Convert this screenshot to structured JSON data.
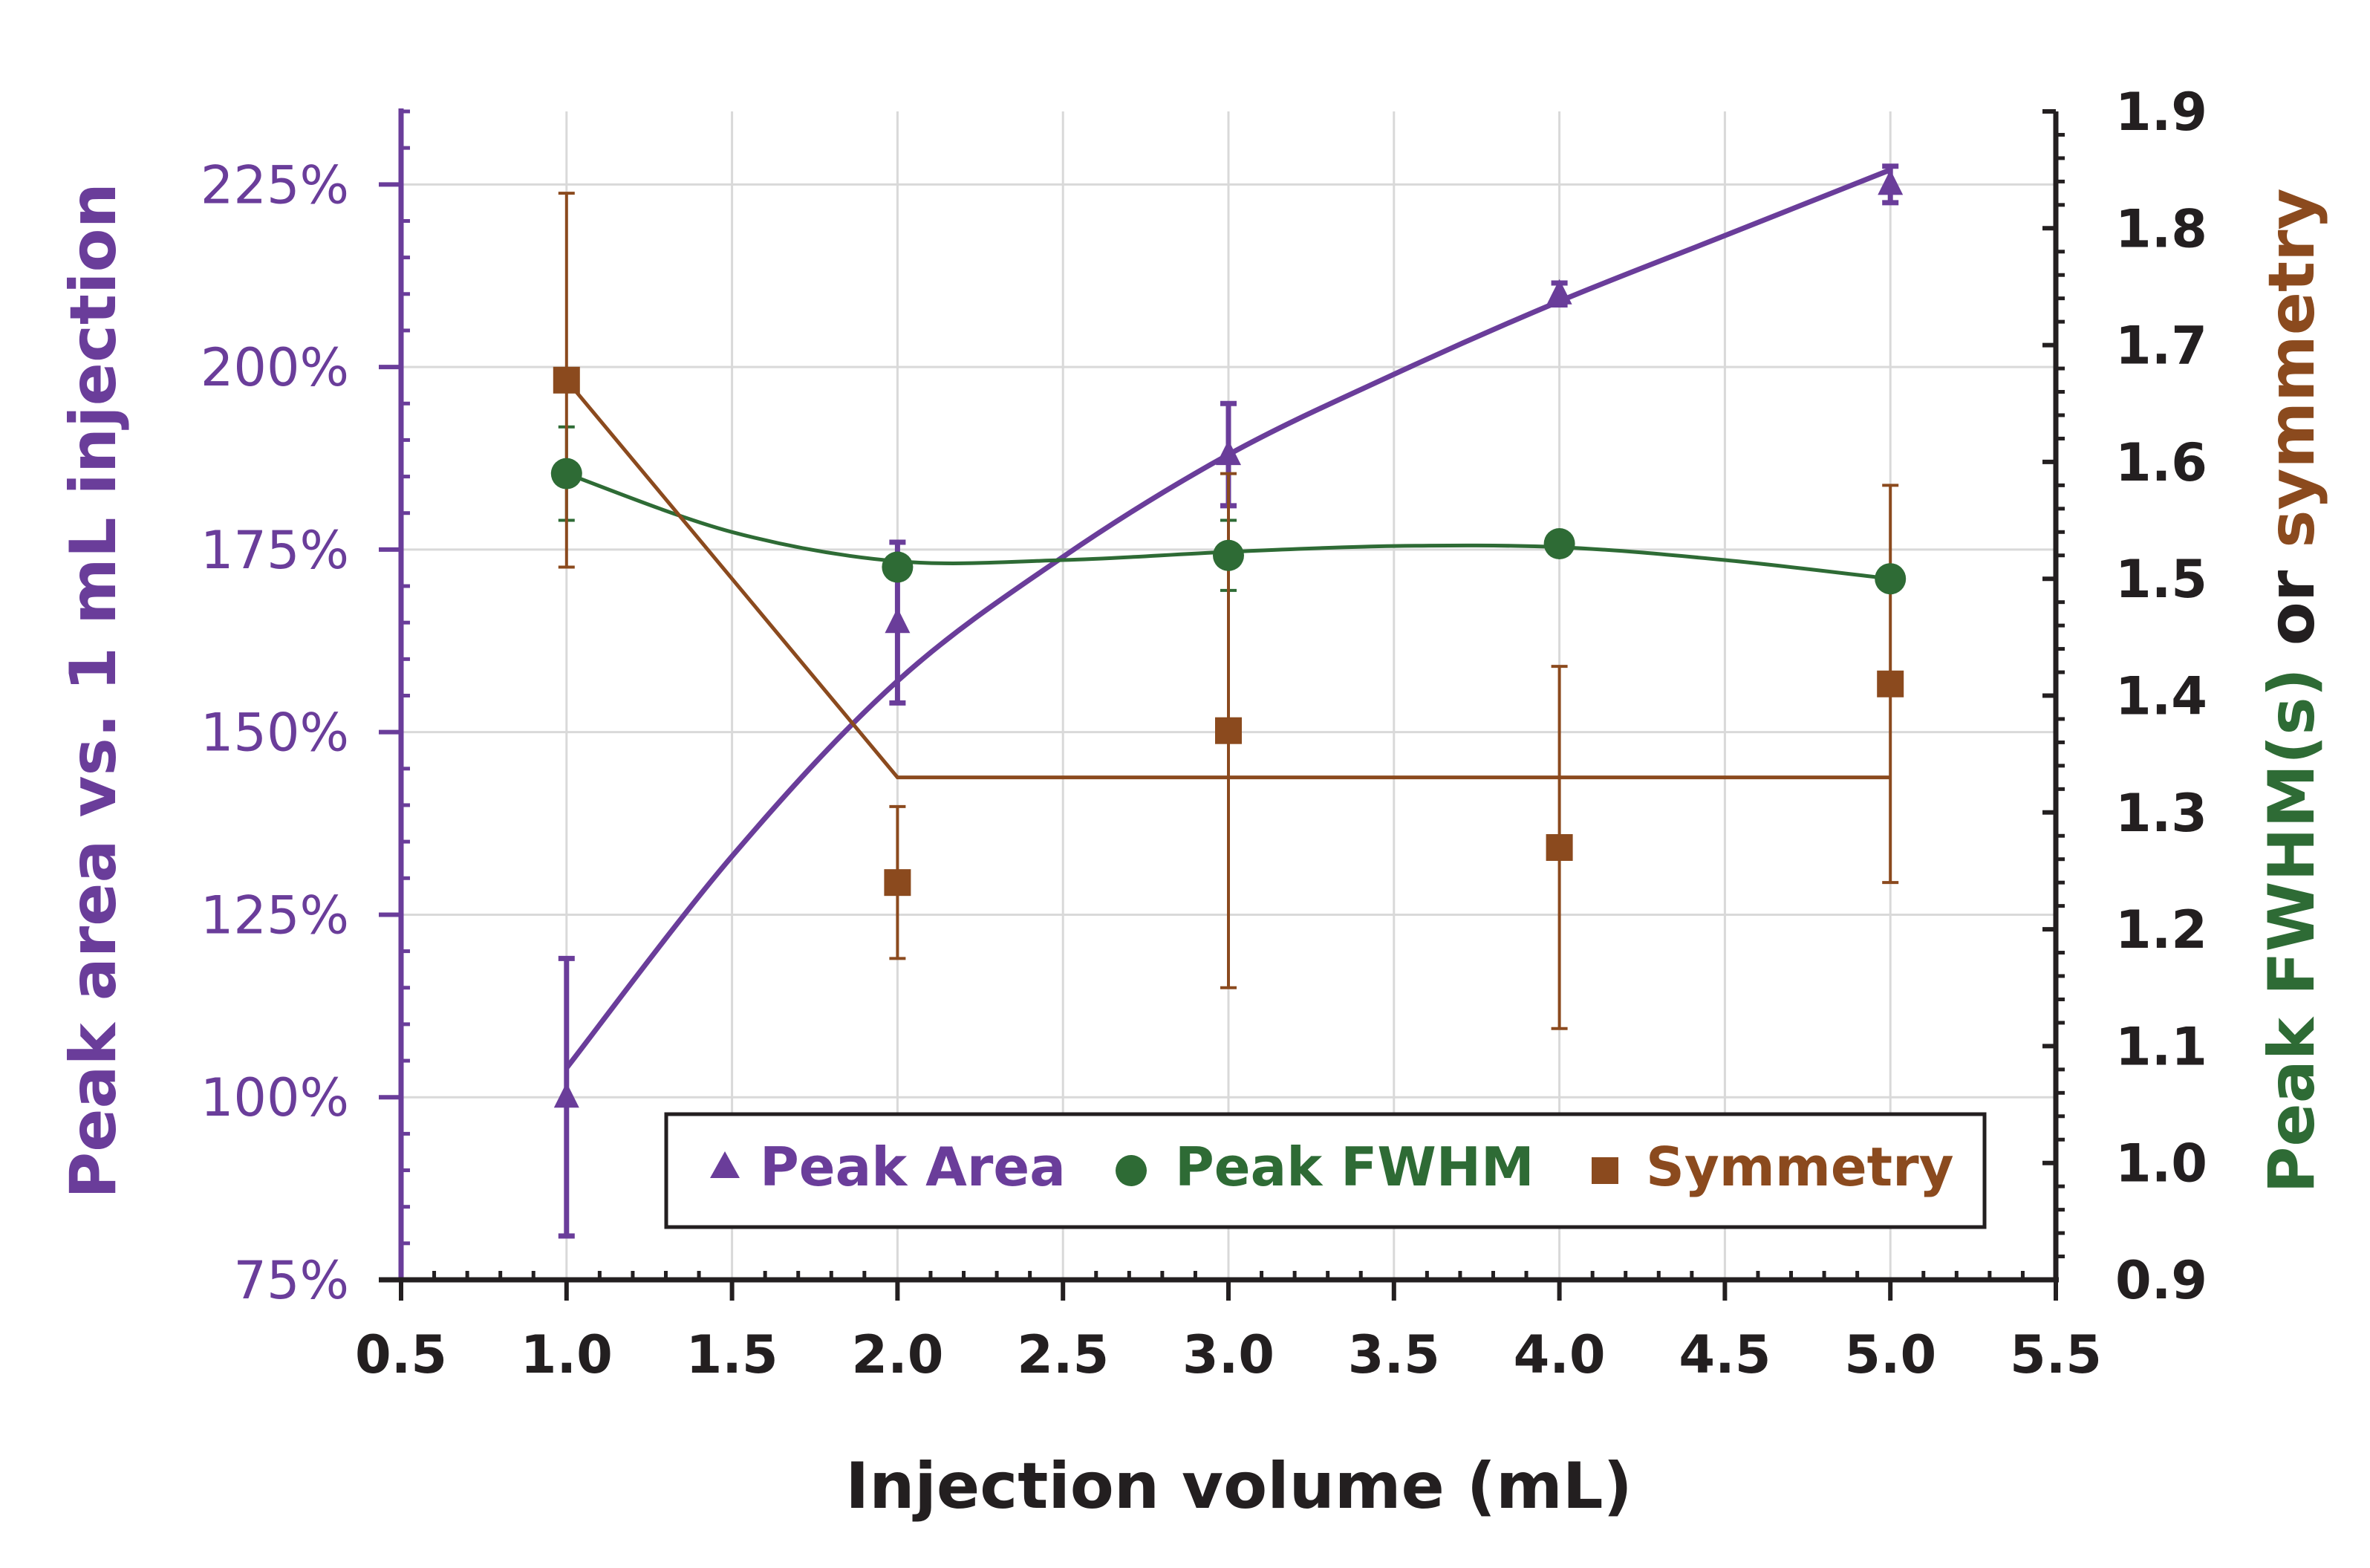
{
  "chart_data": {
    "type": "scatter",
    "title": "",
    "xlabel": "Injection volume (mL)",
    "ylabel_left": "Peak area vs. 1 mL injection",
    "ylabel_right": [
      "Peak FWHM(s)",
      " or ",
      "symmetry"
    ],
    "xlim": [
      0.5,
      5.5
    ],
    "ylim_left": [
      75,
      235
    ],
    "ylim_right": [
      0.9,
      1.9
    ],
    "x_ticks": [
      "0.5",
      "1.0",
      "1.5",
      "2.0",
      "2.5",
      "3.0",
      "3.5",
      "4.0",
      "4.5",
      "5.0",
      "5.5"
    ],
    "y_left_ticks": [
      "75%",
      "100%",
      "125%",
      "150%",
      "175%",
      "200%",
      "225%"
    ],
    "y_right_ticks": [
      "0.9",
      "1.0",
      "1.1",
      "1.2",
      "1.3",
      "1.4",
      "1.5",
      "1.6",
      "1.7",
      "1.8",
      "1.9"
    ],
    "grid": true,
    "legend_position": "bottom-right",
    "colors": {
      "peak_area": "#6a3d9a",
      "peak_fwhm": "#2e6b35",
      "symmetry": "#8b4a1e",
      "axis": "#231f20",
      "grid": "#d9d9d9"
    },
    "series": [
      {
        "name": "Peak Area",
        "axis": "left",
        "marker": "triangle",
        "x": [
          1,
          2,
          3,
          4,
          5
        ],
        "y": [
          100,
          165,
          188,
          210,
          225
        ],
        "err": [
          19,
          11,
          7,
          1.5,
          2.5
        ],
        "fit": [
          [
            1,
            104
          ],
          [
            1.5,
            133
          ],
          [
            2,
            157
          ],
          [
            2.5,
            174
          ],
          [
            3,
            188
          ],
          [
            3.5,
            199
          ],
          [
            4,
            209
          ],
          [
            4.5,
            218
          ],
          [
            5,
            227
          ]
        ]
      },
      {
        "name": "Peak FWHM",
        "axis": "right",
        "marker": "circle",
        "x": [
          1,
          2,
          3,
          4,
          5
        ],
        "y": [
          1.59,
          1.51,
          1.52,
          1.53,
          1.5
        ],
        "err": [
          0.04,
          0.01,
          0.03,
          0.01,
          0.01
        ],
        "fit": [
          [
            1,
            1.59
          ],
          [
            1.5,
            1.54
          ],
          [
            2,
            1.515
          ],
          [
            2.5,
            1.516
          ],
          [
            3,
            1.523
          ],
          [
            3.5,
            1.528
          ],
          [
            4,
            1.527
          ],
          [
            4.5,
            1.516
          ],
          [
            5,
            1.5
          ]
        ]
      },
      {
        "name": "Symmetry",
        "axis": "right",
        "marker": "square",
        "x": [
          1,
          2,
          3,
          4,
          5
        ],
        "y": [
          1.67,
          1.24,
          1.37,
          1.27,
          1.41
        ],
        "err": [
          0.16,
          0.065,
          0.22,
          0.155,
          0.17
        ],
        "fit": [
          [
            1,
            1.67
          ],
          [
            2,
            1.33
          ],
          [
            5,
            1.33
          ]
        ]
      }
    ]
  }
}
